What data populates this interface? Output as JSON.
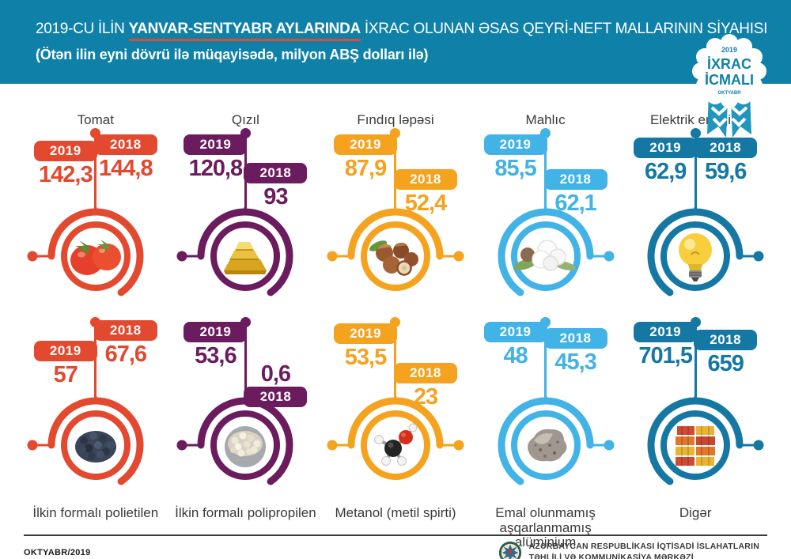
{
  "header": {
    "title_prefix": "2019-CU İLİN ",
    "title_highlight": "YANVAR-SENTYABR AYLARINDA",
    "title_suffix": " İXRAC OLUNAN ƏSAS QEYRİ-NEFT MALLARININ SİYAHISI",
    "subtitle": "(Ötən ilin eyni dövrü ilə müqayisədə, milyon ABŞ dolları ilə)"
  },
  "badge": {
    "year": "2019",
    "line1": "İXRAC",
    "line2": "İCMALI",
    "month": "OKTYABR"
  },
  "year_labels": {
    "y2019": "2019",
    "y2018": "2018"
  },
  "colors": {
    "band": "#0F81A8",
    "red": "#E2492E",
    "purple": "#6B1C5F",
    "orange": "#F5A21F",
    "light_blue": "#41B3E6",
    "steel_blue": "#1478A3",
    "title_text": "#3A3A3A",
    "highlight_underline": "#E2492E"
  },
  "products": [
    {
      "name": "Tomat",
      "icon": "tomato",
      "color_key": "red",
      "value_2019": "142,3",
      "value_2018": "144,8",
      "row": 1,
      "dot": "left",
      "offset_2019": 16,
      "offset_2018": 8,
      "value_above_2018": false
    },
    {
      "name": "Qızıl",
      "icon": "gold-bars",
      "color_key": "purple",
      "value_2019": "120,8",
      "value_2018": "93",
      "row": 1,
      "dot": "left",
      "offset_2019": 8,
      "offset_2018": 44,
      "value_above_2018": false
    },
    {
      "name": "Fındıq ləpəsi",
      "icon": "hazelnuts",
      "color_key": "orange",
      "value_2019": "87,9",
      "value_2018": "52,4",
      "row": 1,
      "dot": "both",
      "offset_2019": 8,
      "offset_2018": 52,
      "value_above_2018": false
    },
    {
      "name": "Mahlıc",
      "icon": "cotton",
      "color_key": "light_blue",
      "value_2019": "85,5",
      "value_2018": "62,1",
      "row": 1,
      "dot": "right",
      "offset_2019": 8,
      "offset_2018": 52,
      "value_above_2018": false
    },
    {
      "name": "Elektrik enerjisi",
      "icon": "light-bulb",
      "color_key": "steel_blue",
      "value_2019": "62,9",
      "value_2018": "59,6",
      "row": 1,
      "dot": "right",
      "offset_2019": 12,
      "offset_2018": 12,
      "value_above_2018": false
    },
    {
      "name": "İlkin formalı polietilen",
      "icon": "polyethylene-granules",
      "color_key": "red",
      "value_2019": "57",
      "value_2018": "67,6",
      "row": 2,
      "dot": "left",
      "offset_2019": 30,
      "offset_2018": 4,
      "value_above_2018": false
    },
    {
      "name": "İlkin formalı polipropilen",
      "icon": "polypropylene-granules",
      "color_key": "purple",
      "value_2019": "53,6",
      "value_2018": "0,6",
      "row": 2,
      "dot": "left",
      "offset_2019": 6,
      "offset_2018": 88,
      "value_above_2018": true
    },
    {
      "name": "Metanol (metil spirti)",
      "icon": "methanol-molecule",
      "color_key": "orange",
      "value_2019": "53,5",
      "value_2018": "23",
      "row": 2,
      "dot": "both",
      "offset_2019": 8,
      "offset_2018": 58,
      "value_above_2018": false
    },
    {
      "name": "Emal olunmamış aşqarlanmamış alüminium",
      "icon": "aluminium-ore",
      "color_key": "light_blue",
      "value_2019": "48",
      "value_2018": "45,3",
      "row": 2,
      "dot": "right",
      "offset_2019": 6,
      "offset_2018": 14,
      "value_above_2018": false
    },
    {
      "name": "Digər",
      "icon": "containers",
      "color_key": "steel_blue",
      "value_2019": "701,5",
      "value_2018": "659",
      "row": 2,
      "dot": "right",
      "offset_2019": 6,
      "offset_2018": 16,
      "value_above_2018": false
    }
  ],
  "footer": {
    "issue": "OKTYABR/2019",
    "org_line1": "AZƏRBAYCAN RESPUBLİKASI İQTİSADİ İSLAHATLARIN",
    "org_line2": "TƏHLİLİ VƏ KOMMUNİKASİYA MƏRKƏZİ"
  },
  "chart_data": {
    "type": "bar",
    "title": "2019-cu ilin yanvar-sentyabr aylarında ixrac olunan əsas qeyri-neft mallarının siyahısı",
    "subtitle": "Ötən ilin eyni dövrü ilə müqayisədə, milyon ABŞ dolları ilə",
    "unit": "milyon ABŞ dolları",
    "categories": [
      "Tomat",
      "Qızıl",
      "Fındıq ləpəsi",
      "Mahlıc",
      "Elektrik enerjisi",
      "İlkin formalı polietilen",
      "İlkin formalı polipropilen",
      "Metanol (metil spirti)",
      "Emal olunmamış aşqarlanmamış alüminium",
      "Digər"
    ],
    "series": [
      {
        "name": "2019",
        "values": [
          142.3,
          120.8,
          87.9,
          85.5,
          62.9,
          57,
          53.6,
          53.5,
          48,
          701.5
        ]
      },
      {
        "name": "2018",
        "values": [
          144.8,
          93,
          52.4,
          62.1,
          59.6,
          67.6,
          0.6,
          23,
          45.3,
          659
        ]
      }
    ],
    "legend_position": "per-item labels",
    "grid": false
  }
}
